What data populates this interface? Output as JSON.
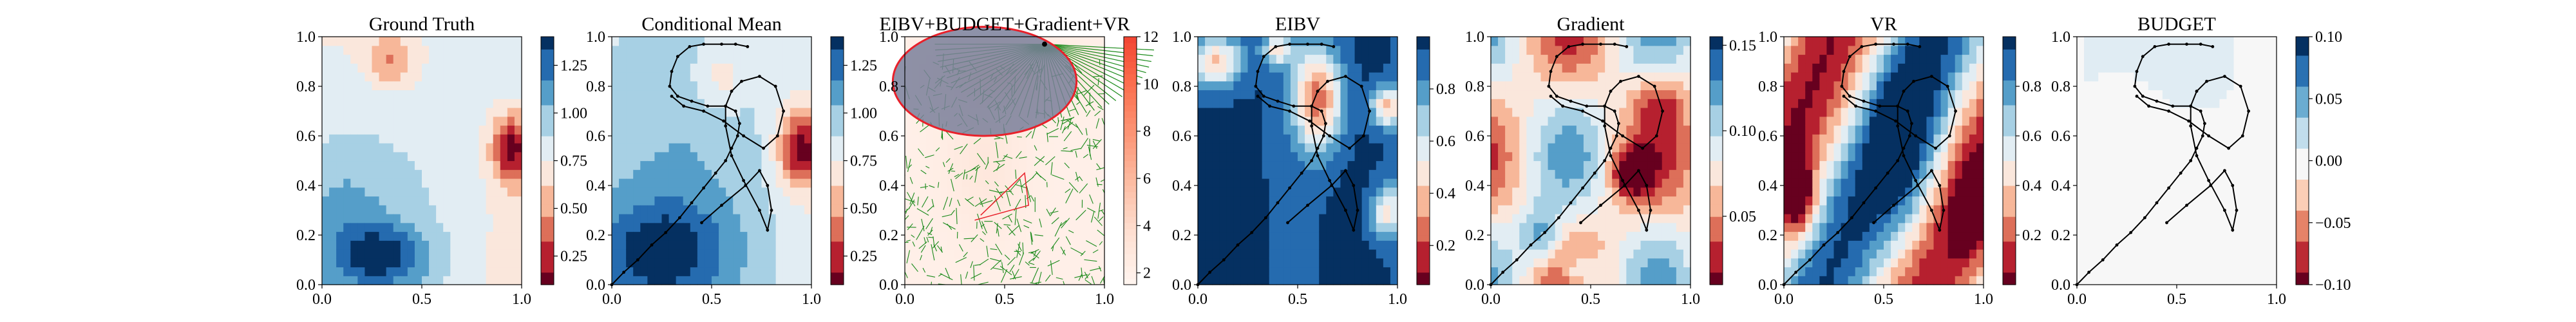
{
  "chart_data": [
    {
      "type": "heatmap",
      "title": "Ground Truth",
      "xlim": [
        0,
        1
      ],
      "ylim": [
        0,
        1
      ],
      "xticks": [
        "0.0",
        "0.5",
        "1.0"
      ],
      "yticks": [
        "0.0",
        "0.2",
        "0.4",
        "0.6",
        "0.8",
        "1.0"
      ],
      "colorbar": {
        "min": 0.1,
        "max": 1.4,
        "ticks": [
          "0.25",
          "0.50",
          "0.75",
          "1.00",
          "1.25"
        ]
      },
      "field": "truth",
      "path": false
    },
    {
      "type": "heatmap",
      "title": "Conditional Mean",
      "xlim": [
        0,
        1
      ],
      "ylim": [
        0,
        1
      ],
      "xticks": [
        "0.0",
        "0.5",
        "1.0"
      ],
      "yticks": [
        "0.0",
        "0.2",
        "0.4",
        "0.6",
        "0.8",
        "1.0"
      ],
      "colorbar": {
        "min": 0.1,
        "max": 1.4,
        "ticks": [
          "0.25",
          "0.50",
          "0.75",
          "1.00",
          "1.25"
        ]
      },
      "field": "mean",
      "path": true
    },
    {
      "type": "heatmap",
      "title": "EIBV+BUDGET+Gradient+VR",
      "xlim": [
        0,
        1
      ],
      "ylim": [
        0,
        1
      ],
      "xticks": [
        "0.0",
        "0.5",
        "1.0"
      ],
      "yticks": [
        "0.0",
        "0.2",
        "0.4",
        "0.6",
        "0.8",
        "1.0"
      ],
      "colorbar": {
        "min": 1.5,
        "max": 12,
        "ticks": [
          "2",
          "4",
          "6",
          "8",
          "10",
          "12"
        ]
      },
      "field": "cost",
      "path": false,
      "rrt": true
    },
    {
      "type": "heatmap",
      "title": "EIBV",
      "xlim": [
        0,
        1
      ],
      "ylim": [
        0,
        1
      ],
      "xticks": [
        "0.0",
        "0.5",
        "1.0"
      ],
      "yticks": [
        "0.0",
        "0.2",
        "0.4",
        "0.6",
        "0.8",
        "1.0"
      ],
      "colorbar": {
        "min": 0.05,
        "max": 1.0,
        "ticks": [
          "0.2",
          "0.4",
          "0.6",
          "0.8"
        ]
      },
      "field": "eibv",
      "path": true
    },
    {
      "type": "heatmap",
      "title": "Gradient",
      "xlim": [
        0,
        1
      ],
      "ylim": [
        0,
        1
      ],
      "xticks": [
        "0.0",
        "0.5",
        "1.0"
      ],
      "yticks": [
        "0.0",
        "0.2",
        "0.4",
        "0.6",
        "0.8",
        "1.0"
      ],
      "colorbar": {
        "min": 0.01,
        "max": 0.155,
        "ticks": [
          "0.05",
          "0.10",
          "0.15"
        ]
      },
      "field": "grad",
      "path": true
    },
    {
      "type": "heatmap",
      "title": "VR",
      "xlim": [
        0,
        1
      ],
      "ylim": [
        0,
        1
      ],
      "xticks": [
        "0.0",
        "0.5",
        "1.0"
      ],
      "yticks": [
        "0.0",
        "0.2",
        "0.4",
        "0.6",
        "0.8",
        "1.0"
      ],
      "colorbar": {
        "min": 0.0,
        "max": 1.0,
        "ticks": [
          "0.2",
          "0.4",
          "0.6",
          "0.8"
        ]
      },
      "field": "vr",
      "path": true
    },
    {
      "type": "heatmap",
      "title": "BUDGET",
      "xlim": [
        0,
        1
      ],
      "ylim": [
        0,
        1
      ],
      "xticks": [
        "0.0",
        "0.5",
        "1.0"
      ],
      "yticks": [
        "0.0",
        "0.2",
        "0.4",
        "0.6",
        "0.8",
        "1.0"
      ],
      "colorbar": {
        "min": -0.1,
        "max": 0.1,
        "ticks": [
          "−0.10",
          "−0.05",
          "0.00",
          "0.05",
          "0.10"
        ]
      },
      "field": "budget",
      "path": true
    }
  ],
  "path": [
    [
      0.0,
      0.0
    ],
    [
      0.06,
      0.05
    ],
    [
      0.13,
      0.1
    ],
    [
      0.2,
      0.16
    ],
    [
      0.27,
      0.21
    ],
    [
      0.34,
      0.27
    ],
    [
      0.4,
      0.33
    ],
    [
      0.46,
      0.39
    ],
    [
      0.52,
      0.45
    ],
    [
      0.57,
      0.5
    ],
    [
      0.6,
      0.55
    ],
    [
      0.63,
      0.6
    ],
    [
      0.64,
      0.65
    ],
    [
      0.62,
      0.7
    ],
    [
      0.57,
      0.72
    ],
    [
      0.48,
      0.72
    ],
    [
      0.4,
      0.74
    ],
    [
      0.33,
      0.76
    ],
    [
      0.29,
      0.8
    ],
    [
      0.3,
      0.86
    ],
    [
      0.33,
      0.92
    ],
    [
      0.39,
      0.96
    ],
    [
      0.46,
      0.97
    ],
    [
      0.55,
      0.97
    ],
    [
      0.62,
      0.97
    ],
    [
      0.68,
      0.96
    ]
  ],
  "path2": [
    [
      0.45,
      0.25
    ],
    [
      0.55,
      0.32
    ],
    [
      0.67,
      0.4
    ],
    [
      0.74,
      0.46
    ],
    [
      0.78,
      0.4
    ],
    [
      0.8,
      0.3
    ],
    [
      0.78,
      0.22
    ],
    [
      0.74,
      0.3
    ],
    [
      0.66,
      0.42
    ],
    [
      0.6,
      0.52
    ],
    [
      0.57,
      0.64
    ],
    [
      0.57,
      0.72
    ],
    [
      0.6,
      0.78
    ],
    [
      0.65,
      0.82
    ],
    [
      0.74,
      0.84
    ],
    [
      0.82,
      0.8
    ],
    [
      0.86,
      0.7
    ],
    [
      0.83,
      0.6
    ],
    [
      0.76,
      0.55
    ],
    [
      0.66,
      0.6
    ],
    [
      0.56,
      0.66
    ],
    [
      0.46,
      0.7
    ],
    [
      0.36,
      0.72
    ],
    [
      0.3,
      0.76
    ]
  ],
  "colors": {
    "rdbu": [
      "#67001f",
      "#b2182b",
      "#d6604d",
      "#f4a582",
      "#fddbc7",
      "#f7f7f7",
      "#d1e5f0",
      "#92c5de",
      "#4393c3",
      "#2166ac",
      "#053061"
    ],
    "reds": [
      "#fff5f0",
      "#fee0d2",
      "#fcbba1",
      "#fc9272",
      "#fb6a4a",
      "#ef3b2c",
      "#cb181d"
    ],
    "tree": "#1a8a1a",
    "ellipse_edge": "#e8202a",
    "ellipse_fill": "#7a7f9a"
  }
}
